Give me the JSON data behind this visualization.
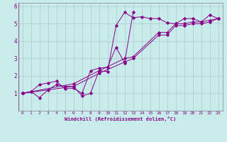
{
  "xlabel": "Windchill (Refroidissement éolien,°C)",
  "background_color": "#c8ecec",
  "line_color": "#880088",
  "grid_color": "#aacccc",
  "xlim": [
    -0.5,
    23.5
  ],
  "ylim": [
    0,
    6.2
  ],
  "xticks": [
    0,
    1,
    2,
    3,
    4,
    5,
    6,
    7,
    8,
    9,
    10,
    11,
    12,
    13,
    14,
    15,
    16,
    17,
    18,
    19,
    20,
    21,
    22,
    23
  ],
  "yticks": [
    1,
    2,
    3,
    4,
    5,
    6
  ],
  "series": [
    {
      "x": [
        0,
        1,
        2,
        3,
        4,
        5,
        6,
        7,
        8,
        9,
        10,
        11,
        12,
        13,
        14,
        15,
        16,
        17,
        18,
        19,
        20,
        21,
        22,
        23
      ],
      "y": [
        1.0,
        1.1,
        0.75,
        1.2,
        1.5,
        1.4,
        1.4,
        0.85,
        1.0,
        2.3,
        2.25,
        4.9,
        5.65,
        5.35,
        5.4,
        5.3,
        5.3,
        5.05,
        5.0,
        5.3,
        5.3,
        5.1,
        5.5,
        5.3
      ]
    },
    {
      "x": [
        0,
        1,
        2,
        3,
        4,
        5,
        6,
        7,
        8,
        9,
        10,
        11,
        12,
        13
      ],
      "y": [
        1.0,
        1.1,
        1.5,
        1.6,
        1.7,
        1.25,
        1.3,
        1.0,
        2.3,
        2.45,
        2.5,
        3.65,
        2.75,
        5.65
      ]
    },
    {
      "x": [
        0,
        6,
        9,
        12,
        13,
        16,
        17,
        18,
        19,
        20,
        21,
        22,
        23
      ],
      "y": [
        1.0,
        1.55,
        2.3,
        3.0,
        3.1,
        4.5,
        4.5,
        5.0,
        5.0,
        5.1,
        5.1,
        5.2,
        5.3
      ]
    },
    {
      "x": [
        0,
        6,
        9,
        12,
        13,
        16,
        17,
        18,
        19,
        20,
        21,
        22,
        23
      ],
      "y": [
        1.0,
        1.4,
        2.15,
        2.8,
        3.0,
        4.35,
        4.35,
        4.9,
        4.9,
        5.0,
        5.0,
        5.1,
        5.3
      ]
    }
  ]
}
